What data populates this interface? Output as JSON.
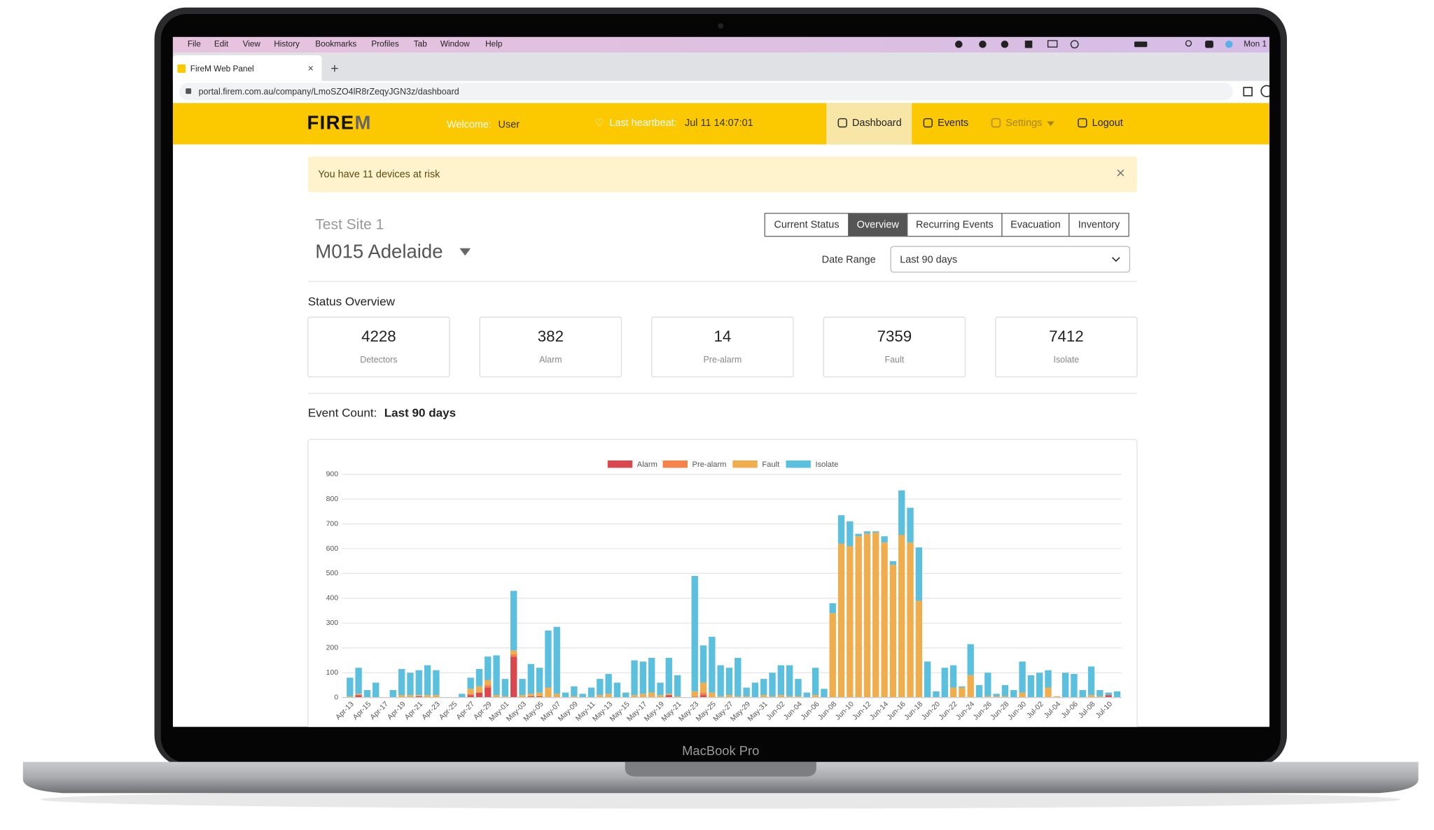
{
  "menu_bar": {
    "items": [
      "File",
      "Edit",
      "View",
      "History",
      "Bookmarks",
      "Profiles",
      "Tab",
      "Window",
      "Help"
    ],
    "clock": "Mon 1"
  },
  "browser": {
    "tab_title": "FireM Web Panel",
    "url": "portal.firem.com.au/company/LmoSZO4lR8rZeqyJGN3z/dashboard"
  },
  "navbar": {
    "logo": [
      "FIRE",
      "M"
    ],
    "welcome_label": "Welcome:",
    "user": "User",
    "heartbeat_label": "Last heartbeat:",
    "heartbeat": "Jul 11 14:07:01",
    "items": [
      {
        "label": "Dashboard",
        "active": true
      },
      {
        "label": "Events",
        "active": false
      },
      {
        "label": "Settings",
        "active": false
      },
      {
        "label": "Logout",
        "active": false
      }
    ]
  },
  "alert": "You have 11 devices at risk",
  "site": {
    "group": "Test Site 1",
    "name": "M015 Adelaide"
  },
  "tabs": [
    {
      "label": "Current Status",
      "active": false
    },
    {
      "label": "Overview",
      "active": true
    },
    {
      "label": "Recurring Events",
      "active": false
    },
    {
      "label": "Evacuation",
      "active": false
    },
    {
      "label": "Inventory",
      "active": false
    }
  ],
  "date_range": {
    "label": "Date Range",
    "value": "Last 90 days"
  },
  "status_overview": {
    "title": "Status Overview",
    "cards": [
      {
        "value": 4228,
        "label": "Detectors"
      },
      {
        "value": 382,
        "label": "Alarm"
      },
      {
        "value": 14,
        "label": "Pre-alarm"
      },
      {
        "value": 7359,
        "label": "Fault"
      },
      {
        "value": 7412,
        "label": "Isolate"
      }
    ]
  },
  "event_count": {
    "label": "Event Count:",
    "range": "Last 90 days"
  },
  "chart_data": {
    "type": "bar",
    "stacked": true,
    "grid": true,
    "legend": "top",
    "categories": [
      "Apr-13",
      null,
      "Apr-15",
      null,
      "Apr-17",
      null,
      "Apr-19",
      null,
      "Apr-21",
      null,
      "Apr-23",
      null,
      "Apr-25",
      null,
      "Apr-27",
      null,
      "Apr-29",
      null,
      "May-01",
      null,
      "May-03",
      null,
      "May-05",
      null,
      "May-07",
      null,
      "May-09",
      null,
      "May-11",
      null,
      "May-13",
      null,
      "May-15",
      null,
      "May-17",
      null,
      "May-19",
      null,
      "May-21",
      null,
      "May-23",
      null,
      "May-25",
      null,
      "May-27",
      null,
      "May-29",
      null,
      "May-31",
      null,
      "Jun-02",
      null,
      "Jun-04",
      null,
      "Jun-06",
      null,
      "Jun-08",
      null,
      "Jun-10",
      null,
      "Jun-12",
      null,
      "Jun-14",
      null,
      "Jun-16",
      null,
      "Jun-18",
      null,
      "Jun-20",
      null,
      "Jun-22",
      null,
      "Jun-24",
      null,
      "Jun-26",
      null,
      "Jun-28",
      null,
      "Jun-30",
      null,
      "Jul-02",
      null,
      "Jul-04",
      null,
      "Jul-06",
      null,
      "Jul-08",
      null,
      "Jul-10",
      null
    ],
    "series": [
      {
        "name": "Alarm",
        "color": "#d9484f",
        "values": [
          0,
          10,
          0,
          0,
          0,
          0,
          0,
          0,
          5,
          0,
          0,
          0,
          0,
          0,
          10,
          20,
          40,
          0,
          0,
          165,
          0,
          5,
          5,
          0,
          0,
          0,
          0,
          0,
          0,
          0,
          0,
          0,
          0,
          0,
          0,
          0,
          0,
          10,
          0,
          0,
          0,
          10,
          0,
          0,
          0,
          0,
          0,
          0,
          0,
          0,
          0,
          0,
          0,
          0,
          0,
          0,
          0,
          0,
          0,
          0,
          0,
          0,
          0,
          0,
          0,
          0,
          0,
          0,
          0,
          0,
          0,
          0,
          0,
          0,
          0,
          0,
          0,
          0,
          0,
          0,
          0,
          0,
          0,
          0,
          0,
          0,
          0,
          0,
          10,
          0
        ]
      },
      {
        "name": "Pre-alarm",
        "color": "#f5834a",
        "values": [
          0,
          0,
          0,
          0,
          0,
          0,
          0,
          0,
          0,
          0,
          0,
          0,
          0,
          0,
          5,
          0,
          10,
          0,
          0,
          10,
          0,
          0,
          0,
          0,
          0,
          0,
          0,
          0,
          0,
          0,
          0,
          0,
          0,
          0,
          0,
          0,
          0,
          0,
          0,
          0,
          5,
          10,
          0,
          0,
          0,
          0,
          0,
          0,
          0,
          0,
          0,
          0,
          0,
          0,
          0,
          0,
          0,
          0,
          0,
          0,
          0,
          0,
          0,
          0,
          0,
          0,
          0,
          0,
          0,
          0,
          0,
          0,
          0,
          0,
          0,
          0,
          0,
          0,
          0,
          0,
          0,
          0,
          0,
          0,
          0,
          0,
          0,
          0,
          0,
          0
        ]
      },
      {
        "name": "Fault",
        "color": "#f0ad4e",
        "values": [
          5,
          5,
          0,
          0,
          0,
          0,
          10,
          10,
          5,
          10,
          10,
          0,
          0,
          0,
          20,
          25,
          20,
          10,
          5,
          15,
          10,
          10,
          15,
          40,
          15,
          0,
          5,
          0,
          0,
          10,
          15,
          0,
          0,
          10,
          15,
          20,
          10,
          5,
          5,
          0,
          20,
          40,
          20,
          5,
          10,
          5,
          5,
          0,
          10,
          5,
          10,
          5,
          5,
          0,
          10,
          0,
          340,
          620,
          610,
          650,
          660,
          665,
          625,
          535,
          655,
          625,
          390,
          0,
          0,
          0,
          40,
          40,
          90,
          0,
          5,
          5,
          5,
          0,
          20,
          0,
          0,
          40,
          5,
          0,
          0,
          0,
          10,
          5,
          0,
          0
        ]
      },
      {
        "name": "Isolate",
        "color": "#5bc0de",
        "values": [
          75,
          105,
          30,
          60,
          0,
          30,
          105,
          90,
          100,
          120,
          100,
          0,
          0,
          15,
          45,
          70,
          95,
          160,
          70,
          240,
          65,
          120,
          100,
          230,
          270,
          20,
          40,
          15,
          40,
          65,
          80,
          60,
          20,
          140,
          130,
          140,
          50,
          145,
          85,
          0,
          465,
          150,
          225,
          125,
          110,
          155,
          35,
          60,
          65,
          95,
          120,
          125,
          70,
          20,
          110,
          35,
          40,
          115,
          100,
          10,
          10,
          5,
          25,
          15,
          180,
          140,
          215,
          145,
          25,
          120,
          90,
          5,
          125,
          50,
          95,
          10,
          45,
          30,
          125,
          90,
          100,
          70,
          0,
          100,
          95,
          30,
          115,
          25,
          10,
          25
        ]
      }
    ],
    "ylim": [
      0,
      900
    ],
    "yticks": [
      0,
      100,
      200,
      300,
      400,
      500,
      600,
      700,
      800,
      900
    ]
  },
  "laptop_label": "MacBook Pro"
}
